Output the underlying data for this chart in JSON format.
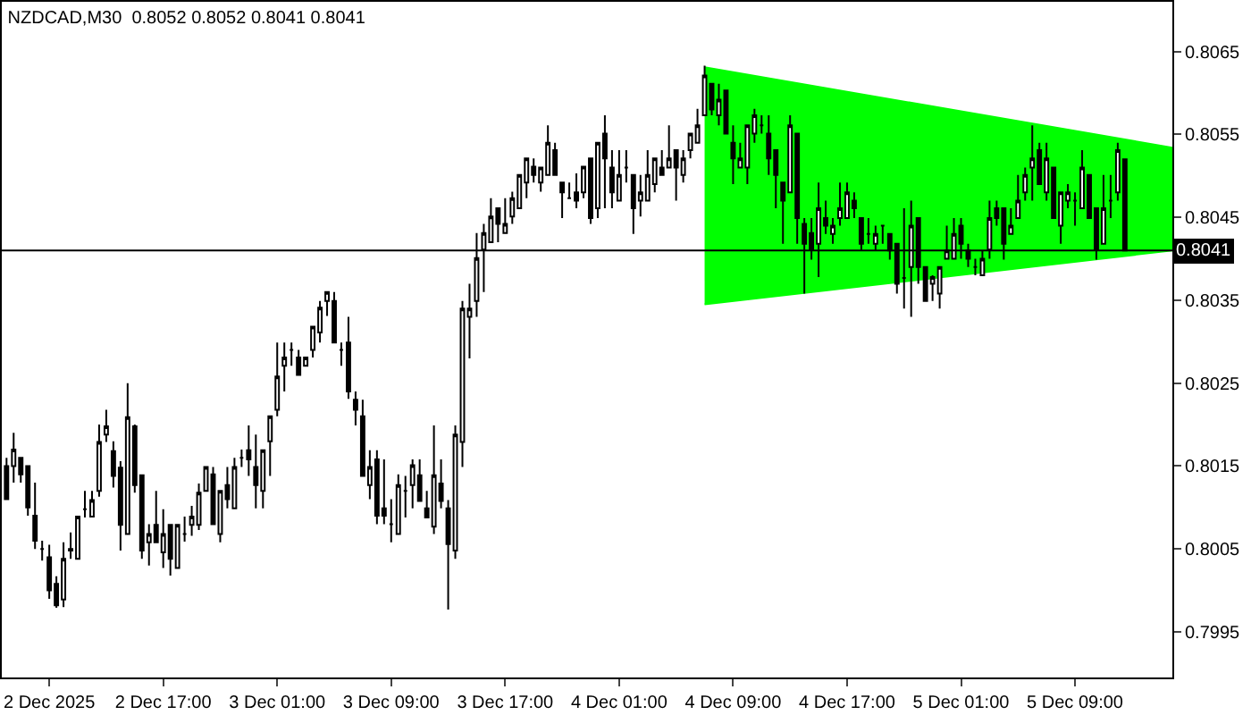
{
  "chart_data": {
    "type": "candlestick",
    "title": "NZDCAD,M30  0.8052 0.8052 0.8041 0.8041",
    "x": [
      "2025-12-02T06:00",
      "2025-12-02T06:30",
      "2025-12-02T07:00",
      "2025-12-02T07:30",
      "2025-12-02T08:00",
      "2025-12-02T08:30",
      "2025-12-02T09:00",
      "2025-12-02T09:30",
      "2025-12-02T10:00",
      "2025-12-02T10:30",
      "2025-12-02T11:00",
      "2025-12-02T11:30",
      "2025-12-02T12:00",
      "2025-12-02T12:30",
      "2025-12-02T13:00",
      "2025-12-02T13:30",
      "2025-12-02T14:00",
      "2025-12-02T14:30",
      "2025-12-02T15:00",
      "2025-12-02T15:30",
      "2025-12-02T16:00",
      "2025-12-02T16:30",
      "2025-12-02T17:00",
      "2025-12-02T17:30",
      "2025-12-02T18:00",
      "2025-12-02T18:30",
      "2025-12-02T19:00",
      "2025-12-02T19:30",
      "2025-12-02T20:00",
      "2025-12-02T20:30",
      "2025-12-02T21:00",
      "2025-12-02T21:30",
      "2025-12-02T22:00",
      "2025-12-02T22:30",
      "2025-12-02T23:00",
      "2025-12-02T23:30",
      "2025-12-03T00:00",
      "2025-12-03T00:30",
      "2025-12-03T01:00",
      "2025-12-03T01:30",
      "2025-12-03T02:00",
      "2025-12-03T02:30",
      "2025-12-03T03:00",
      "2025-12-03T03:30",
      "2025-12-03T04:00",
      "2025-12-03T04:30",
      "2025-12-03T05:00",
      "2025-12-03T05:30",
      "2025-12-03T06:00",
      "2025-12-03T06:30",
      "2025-12-03T07:00",
      "2025-12-03T07:30",
      "2025-12-03T08:00",
      "2025-12-03T08:30",
      "2025-12-03T09:00",
      "2025-12-03T09:30",
      "2025-12-03T10:00",
      "2025-12-03T10:30",
      "2025-12-03T11:00",
      "2025-12-03T11:30",
      "2025-12-03T12:00",
      "2025-12-03T12:30",
      "2025-12-03T13:00",
      "2025-12-03T13:30",
      "2025-12-03T14:00",
      "2025-12-03T14:30",
      "2025-12-03T15:00",
      "2025-12-03T15:30",
      "2025-12-03T16:00",
      "2025-12-03T16:30",
      "2025-12-03T17:00",
      "2025-12-03T17:30",
      "2025-12-03T18:00",
      "2025-12-03T18:30",
      "2025-12-03T19:00",
      "2025-12-03T19:30",
      "2025-12-03T20:00",
      "2025-12-03T20:30",
      "2025-12-03T21:00",
      "2025-12-03T21:30",
      "2025-12-03T22:00",
      "2025-12-03T22:30",
      "2025-12-03T23:00",
      "2025-12-03T23:30",
      "2025-12-04T00:00",
      "2025-12-04T00:30",
      "2025-12-04T01:00",
      "2025-12-04T01:30",
      "2025-12-04T02:00",
      "2025-12-04T02:30",
      "2025-12-04T03:00",
      "2025-12-04T03:30",
      "2025-12-04T04:00",
      "2025-12-04T04:30",
      "2025-12-04T05:00",
      "2025-12-04T05:30",
      "2025-12-04T06:00",
      "2025-12-04T06:30",
      "2025-12-04T07:00",
      "2025-12-04T07:30",
      "2025-12-04T08:00",
      "2025-12-04T08:30",
      "2025-12-04T09:00",
      "2025-12-04T09:30",
      "2025-12-04T10:00",
      "2025-12-04T10:30",
      "2025-12-04T11:00",
      "2025-12-04T11:30",
      "2025-12-04T12:00",
      "2025-12-04T12:30",
      "2025-12-04T13:00",
      "2025-12-04T13:30",
      "2025-12-04T14:00",
      "2025-12-04T14:30",
      "2025-12-04T15:00",
      "2025-12-04T15:30",
      "2025-12-04T16:00",
      "2025-12-04T16:30",
      "2025-12-04T17:00",
      "2025-12-04T17:30",
      "2025-12-04T18:00",
      "2025-12-04T18:30",
      "2025-12-04T19:00",
      "2025-12-04T19:30",
      "2025-12-04T20:00",
      "2025-12-04T20:30",
      "2025-12-04T21:00",
      "2025-12-04T21:30",
      "2025-12-04T22:00",
      "2025-12-04T22:30",
      "2025-12-04T23:00",
      "2025-12-04T23:30",
      "2025-12-05T00:00",
      "2025-12-05T00:30",
      "2025-12-05T01:00",
      "2025-12-05T01:30",
      "2025-12-05T02:00",
      "2025-12-05T02:30",
      "2025-12-05T03:00",
      "2025-12-05T03:30",
      "2025-12-05T04:00",
      "2025-12-05T04:30",
      "2025-12-05T05:00",
      "2025-12-05T05:30",
      "2025-12-05T06:00",
      "2025-12-05T06:30",
      "2025-12-05T07:00",
      "2025-12-05T07:30",
      "2025-12-05T08:00",
      "2025-12-05T08:30",
      "2025-12-05T09:00",
      "2025-12-05T09:30",
      "2025-12-05T10:00",
      "2025-12-05T10:30",
      "2025-12-05T11:00",
      "2025-12-05T11:30",
      "2025-12-05T12:00",
      "2025-12-05T12:30"
    ],
    "ohlc": [
      [
        0.8015,
        0.8016,
        0.8011,
        0.8011
      ],
      [
        0.8015,
        0.8019,
        0.8013,
        0.8017
      ],
      [
        0.8016,
        0.8016,
        0.8013,
        0.8014
      ],
      [
        0.8015,
        0.8015,
        0.8009,
        0.801
      ],
      [
        0.8009,
        0.8013,
        0.8005,
        0.8006
      ],
      [
        0.8005,
        0.8006,
        0.80036,
        0.8005
      ],
      [
        0.8004,
        0.80055,
        0.7999,
        0.8
      ],
      [
        0.80008,
        0.80017,
        0.79979,
        0.79982
      ],
      [
        0.79989,
        0.80058,
        0.7998,
        0.80038
      ],
      [
        0.80048,
        0.8007,
        0.80038,
        0.8005
      ],
      [
        0.80038,
        0.8009,
        0.80038,
        0.80089
      ],
      [
        0.80098,
        0.8012,
        0.80088,
        0.80098
      ],
      [
        0.80089,
        0.8012,
        0.80088,
        0.80109
      ],
      [
        0.8012,
        0.802,
        0.80113,
        0.80179
      ],
      [
        0.80188,
        0.80218,
        0.80179,
        0.80198
      ],
      [
        0.80168,
        0.8018,
        0.80124,
        0.80138
      ],
      [
        0.80148,
        0.80156,
        0.80048,
        0.80079
      ],
      [
        0.80068,
        0.8025,
        0.80068,
        0.80209
      ],
      [
        0.80198,
        0.802,
        0.80118,
        0.80127
      ],
      [
        0.80139,
        0.80139,
        0.80038,
        0.80048
      ],
      [
        0.80058,
        0.8008,
        0.8003,
        0.80068
      ],
      [
        0.80079,
        0.8012,
        0.80058,
        0.80058
      ],
      [
        0.80046,
        0.80098,
        0.80027,
        0.80068
      ],
      [
        0.80079,
        0.80079,
        0.80018,
        0.80038
      ],
      [
        0.80027,
        0.8008,
        0.80027,
        0.80079
      ],
      [
        0.80068,
        0.80089,
        0.80059,
        0.80068
      ],
      [
        0.80079,
        0.80102,
        0.80066,
        0.80089
      ],
      [
        0.80079,
        0.80129,
        0.80073,
        0.80118
      ],
      [
        0.8012,
        0.8015,
        0.8012,
        0.80149
      ],
      [
        0.8014,
        0.80149,
        0.8008,
        0.8008
      ],
      [
        0.80068,
        0.8012,
        0.80058,
        0.8012
      ],
      [
        0.80127,
        0.80149,
        0.80099,
        0.8011
      ],
      [
        0.80099,
        0.8016,
        0.80099,
        0.80149
      ],
      [
        0.8016,
        0.8017,
        0.80149,
        0.8016
      ],
      [
        0.80169,
        0.80199,
        0.80138,
        0.80158
      ],
      [
        0.80149,
        0.80188,
        0.80099,
        0.80127
      ],
      [
        0.8012,
        0.80169,
        0.80099,
        0.80169
      ],
      [
        0.8018,
        0.8021,
        0.80138,
        0.8021
      ],
      [
        0.80218,
        0.80299,
        0.8021,
        0.80258
      ],
      [
        0.80271,
        0.80299,
        0.8024,
        0.80281
      ],
      [
        0.8029,
        0.80299,
        0.80271,
        0.8029
      ],
      [
        0.80281,
        0.8029,
        0.8026,
        0.8026
      ],
      [
        0.80271,
        0.80281,
        0.80271,
        0.80281
      ],
      [
        0.8029,
        0.80318,
        0.80281,
        0.80318
      ],
      [
        0.80311,
        0.80349,
        0.80299,
        0.80341
      ],
      [
        0.80349,
        0.8036,
        0.80331,
        0.8036
      ],
      [
        0.80349,
        0.8036,
        0.80299,
        0.80299
      ],
      [
        0.8029,
        0.80299,
        0.80271,
        0.8029
      ],
      [
        0.80299,
        0.8033,
        0.80231,
        0.8024
      ],
      [
        0.8023,
        0.8024,
        0.80199,
        0.80218
      ],
      [
        0.8021,
        0.8023,
        0.80138,
        0.80138
      ],
      [
        0.80127,
        0.80169,
        0.8011,
        0.80149
      ],
      [
        0.80158,
        0.80169,
        0.8008,
        0.8009
      ],
      [
        0.80099,
        0.80158,
        0.8008,
        0.8009
      ],
      [
        0.8008,
        0.8011,
        0.80058,
        0.8008
      ],
      [
        0.80068,
        0.8014,
        0.80068,
        0.80127
      ],
      [
        0.8012,
        0.80138,
        0.80088,
        0.8012
      ],
      [
        0.80127,
        0.80158,
        0.80099,
        0.80151
      ],
      [
        0.80139,
        0.80158,
        0.80108,
        0.80108
      ],
      [
        0.80099,
        0.8012,
        0.80088,
        0.80088
      ],
      [
        0.80077,
        0.80199,
        0.80068,
        0.80139
      ],
      [
        0.80129,
        0.80158,
        0.80099,
        0.80108
      ],
      [
        0.80099,
        0.80109,
        0.79977,
        0.80056
      ],
      [
        0.80048,
        0.80199,
        0.80038,
        0.80188
      ],
      [
        0.80179,
        0.80349,
        0.80149,
        0.8034
      ],
      [
        0.8033,
        0.8037,
        0.8028,
        0.8034
      ],
      [
        0.80349,
        0.80431,
        0.8033,
        0.80401
      ],
      [
        0.80411,
        0.80442,
        0.8036,
        0.80431
      ],
      [
        0.8042,
        0.80473,
        0.8042,
        0.80451
      ],
      [
        0.80461,
        0.80461,
        0.8042,
        0.80442
      ],
      [
        0.80431,
        0.80473,
        0.80431,
        0.80442
      ],
      [
        0.80451,
        0.80481,
        0.80442,
        0.80473
      ],
      [
        0.80461,
        0.80501,
        0.80461,
        0.80501
      ],
      [
        0.80492,
        0.80521,
        0.80473,
        0.80521
      ],
      [
        0.80511,
        0.80521,
        0.80492,
        0.80501
      ],
      [
        0.80492,
        0.8051,
        0.80481,
        0.8051
      ],
      [
        0.80501,
        0.80561,
        0.80501,
        0.8054
      ],
      [
        0.80531,
        0.8054,
        0.80501,
        0.80501
      ],
      [
        0.80492,
        0.80492,
        0.80449,
        0.8048
      ],
      [
        0.80473,
        0.80492,
        0.80473,
        0.80473
      ],
      [
        0.8048,
        0.80503,
        0.80461,
        0.8047
      ],
      [
        0.8048,
        0.80511,
        0.80473,
        0.80511
      ],
      [
        0.80521,
        0.80521,
        0.80442,
        0.80449
      ],
      [
        0.80461,
        0.8054,
        0.80449,
        0.8054
      ],
      [
        0.80551,
        0.80573,
        0.80461,
        0.80521
      ],
      [
        0.8051,
        0.80531,
        0.80461,
        0.8048
      ],
      [
        0.8047,
        0.80531,
        0.8047,
        0.80501
      ],
      [
        0.8051,
        0.80531,
        0.80492,
        0.8051
      ],
      [
        0.80501,
        0.80501,
        0.8043,
        0.80461
      ],
      [
        0.8047,
        0.80501,
        0.80451,
        0.8048
      ],
      [
        0.8047,
        0.80531,
        0.8047,
        0.80501
      ],
      [
        0.8049,
        0.80521,
        0.8048,
        0.80521
      ],
      [
        0.8051,
        0.80531,
        0.80501,
        0.80501
      ],
      [
        0.8051,
        0.80561,
        0.8051,
        0.80521
      ],
      [
        0.80531,
        0.80531,
        0.8047,
        0.8051
      ],
      [
        0.80501,
        0.80531,
        0.80492,
        0.80521
      ],
      [
        0.80531,
        0.80551,
        0.80521,
        0.80551
      ],
      [
        0.8054,
        0.80581,
        0.8054,
        0.80561
      ],
      [
        0.80573,
        0.80633,
        0.80573,
        0.80621
      ],
      [
        0.80611,
        0.80611,
        0.80573,
        0.8058
      ],
      [
        0.80573,
        0.80611,
        0.80561,
        0.80592
      ],
      [
        0.80603,
        0.80603,
        0.80551,
        0.80551
      ],
      [
        0.8054,
        0.80561,
        0.8049,
        0.80521
      ],
      [
        0.8051,
        0.8054,
        0.8051,
        0.80521
      ],
      [
        0.8051,
        0.80561,
        0.8049,
        0.80561
      ],
      [
        0.80551,
        0.80581,
        0.8054,
        0.80573
      ],
      [
        0.80561,
        0.80573,
        0.80551,
        0.80561
      ],
      [
        0.80551,
        0.80573,
        0.80501,
        0.80521
      ],
      [
        0.80531,
        0.80531,
        0.80461,
        0.80501
      ],
      [
        0.80492,
        0.80492,
        0.80418,
        0.8047
      ],
      [
        0.8048,
        0.80573,
        0.8048,
        0.80561
      ],
      [
        0.80551,
        0.80551,
        0.80418,
        0.80449
      ],
      [
        0.80442,
        0.80449,
        0.80358,
        0.80418
      ],
      [
        0.80431,
        0.80449,
        0.80399,
        0.80411
      ],
      [
        0.80418,
        0.80492,
        0.80378,
        0.80461
      ],
      [
        0.80449,
        0.8047,
        0.8043,
        0.8044
      ],
      [
        0.8043,
        0.80449,
        0.80418,
        0.8044
      ],
      [
        0.80449,
        0.80492,
        0.8044,
        0.80461
      ],
      [
        0.80449,
        0.80492,
        0.80449,
        0.8048
      ],
      [
        0.8047,
        0.8048,
        0.80449,
        0.80461
      ],
      [
        0.80449,
        0.80449,
        0.8041,
        0.80418
      ],
      [
        0.8043,
        0.80449,
        0.80418,
        0.8043
      ],
      [
        0.80418,
        0.8044,
        0.8041,
        0.8043
      ],
      [
        0.8044,
        0.8044,
        0.80418,
        0.8044
      ],
      [
        0.8043,
        0.8043,
        0.80399,
        0.8041
      ],
      [
        0.80418,
        0.80418,
        0.80358,
        0.8037
      ],
      [
        0.80377,
        0.80461,
        0.8034,
        0.80377
      ],
      [
        0.8039,
        0.8047,
        0.8033,
        0.8044
      ],
      [
        0.80449,
        0.80449,
        0.8037,
        0.8039
      ],
      [
        0.8039,
        0.8039,
        0.80349,
        0.80349
      ],
      [
        0.8037,
        0.8038,
        0.80349,
        0.80378
      ],
      [
        0.80358,
        0.8039,
        0.8034,
        0.8039
      ],
      [
        0.804,
        0.8044,
        0.804,
        0.8041
      ],
      [
        0.804,
        0.80449,
        0.804,
        0.8043
      ],
      [
        0.8044,
        0.80449,
        0.804,
        0.80418
      ],
      [
        0.8041,
        0.80418,
        0.8039,
        0.804
      ],
      [
        0.8039,
        0.804,
        0.8038,
        0.8039
      ],
      [
        0.8038,
        0.8041,
        0.8038,
        0.804
      ],
      [
        0.80411,
        0.8047,
        0.804,
        0.80449
      ],
      [
        0.80461,
        0.8047,
        0.8044,
        0.80449
      ],
      [
        0.80461,
        0.80461,
        0.80399,
        0.80418
      ],
      [
        0.8043,
        0.80461,
        0.8043,
        0.8044
      ],
      [
        0.80449,
        0.80501,
        0.80449,
        0.8047
      ],
      [
        0.8048,
        0.8051,
        0.8047,
        0.80501
      ],
      [
        0.8051,
        0.80561,
        0.8047,
        0.80521
      ],
      [
        0.80531,
        0.8054,
        0.8049,
        0.8049
      ],
      [
        0.8048,
        0.8054,
        0.8047,
        0.80521
      ],
      [
        0.8051,
        0.8051,
        0.80449,
        0.80449
      ],
      [
        0.8044,
        0.8048,
        0.80418,
        0.8048
      ],
      [
        0.8047,
        0.8049,
        0.80461,
        0.8048
      ],
      [
        0.8047,
        0.8048,
        0.8044,
        0.8047
      ],
      [
        0.80461,
        0.80531,
        0.80461,
        0.8051
      ],
      [
        0.80501,
        0.80501,
        0.80449,
        0.80449
      ],
      [
        0.80461,
        0.80461,
        0.80399,
        0.80411
      ],
      [
        0.80418,
        0.80501,
        0.80418,
        0.80461
      ],
      [
        0.8047,
        0.80501,
        0.80449,
        0.8047
      ],
      [
        0.8048,
        0.8054,
        0.8047,
        0.80531
      ],
      [
        0.8052,
        0.8052,
        0.8041,
        0.8041
      ]
    ],
    "color": "#000000",
    "series": [
      {
        "type": "area",
        "color": "#00ff00",
        "x": [
          "2025-12-04T07:00",
          "2025-12-05T15:50",
          "2025-12-05T15:50",
          "2025-12-04T07:00"
        ],
        "values": [
          0.80631,
          0.80534,
          0.8041,
          0.80345
        ]
      }
    ],
    "xlim": [
      "2025-12-02T05:40",
      "2025-12-05T15:50"
    ],
    "ylim": [
      0.79895,
      0.8071
    ],
    "xticks": [
      {
        "value": "2025-12-02T09:00",
        "label": "2 Dec 2025"
      },
      {
        "value": "2025-12-02T17:00",
        "label": "2 Dec 17:00"
      },
      {
        "value": "2025-12-03T01:00",
        "label": "3 Dec 01:00"
      },
      {
        "value": "2025-12-03T09:00",
        "label": "3 Dec 09:00"
      },
      {
        "value": "2025-12-03T17:00",
        "label": "3 Dec 17:00"
      },
      {
        "value": "2025-12-04T01:00",
        "label": "4 Dec 01:00"
      },
      {
        "value": "2025-12-04T09:00",
        "label": "4 Dec 09:00"
      },
      {
        "value": "2025-12-04T17:00",
        "label": "4 Dec 17:00"
      },
      {
        "value": "2025-12-05T01:00",
        "label": "5 Dec 01:00"
      },
      {
        "value": "2025-12-05T09:00",
        "label": "5 Dec 09:00"
      }
    ],
    "yticks": [
      {
        "value": 0.7995,
        "label": "0.7995"
      },
      {
        "value": 0.8005,
        "label": "0.8005"
      },
      {
        "value": 0.8015,
        "label": "0.8015"
      },
      {
        "value": 0.8025,
        "label": "0.8025"
      },
      {
        "value": 0.8035,
        "label": "0.8035"
      },
      {
        "value": 0.8045,
        "label": "0.8045"
      },
      {
        "value": 0.8055,
        "label": "0.8055"
      },
      {
        "value": 0.8065,
        "label": "0.8065"
      }
    ],
    "ref_lines": [
      {
        "axis": "y",
        "value": 0.8041,
        "label": "0.8041",
        "color": "#000000"
      }
    ],
    "grid": false
  }
}
